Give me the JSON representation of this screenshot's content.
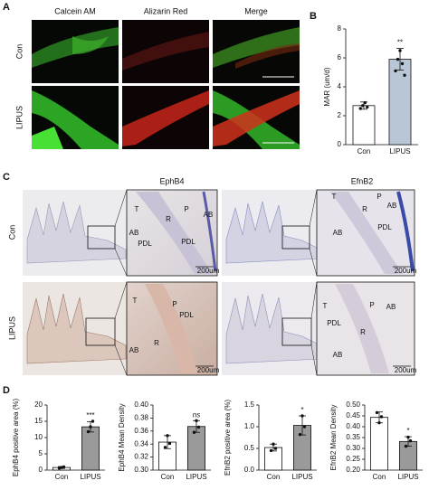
{
  "panel_labels": [
    "A",
    "B",
    "C",
    "D"
  ],
  "panel_a": {
    "columns": [
      "Calcein AM",
      "Alizarin Red",
      "Merge"
    ],
    "rows": [
      "Con",
      "LIPUS"
    ]
  },
  "panel_c": {
    "columns": [
      "EphB4",
      "EfnB2"
    ],
    "rows": [
      "Con",
      "LIPUS"
    ],
    "scale_bar": "200um",
    "annotations": [
      [
        {
          "text": "T",
          "color": "#e0302a"
        },
        {
          "text": "P",
          "color": "#e0302a"
        },
        {
          "text": "R",
          "color": "#111111"
        },
        {
          "text": "AB",
          "color": "#111111"
        },
        {
          "text": "AB",
          "color": "#111111"
        },
        {
          "text": "PDL",
          "color": "#111111"
        },
        {
          "text": "PDL",
          "color": "#111111"
        }
      ],
      [
        {
          "text": "T",
          "color": "#e0302a"
        },
        {
          "text": "P",
          "color": "#e0302a"
        },
        {
          "text": "R",
          "color": "#111111"
        },
        {
          "text": "AB",
          "color": "#111111"
        },
        {
          "text": "AB",
          "color": "#111111"
        },
        {
          "text": "PDL",
          "color": "#111111"
        }
      ],
      [
        {
          "text": "T",
          "color": "#e0302a"
        },
        {
          "text": "P",
          "color": "#e0302a"
        },
        {
          "text": "PDL",
          "color": "#111111"
        },
        {
          "text": "R",
          "color": "#111111"
        },
        {
          "text": "AB",
          "color": "#111111"
        }
      ],
      [
        {
          "text": "T",
          "color": "#e0302a"
        },
        {
          "text": "P",
          "color": "#e0302a"
        },
        {
          "text": "PDL",
          "color": "#111111"
        },
        {
          "text": "AB",
          "color": "#111111"
        },
        {
          "text": "AB",
          "color": "#111111"
        },
        {
          "text": "R",
          "color": "#111111"
        }
      ]
    ]
  },
  "chart_data": [
    {
      "type": "bar",
      "ylabel": "MAR (um/d)",
      "categories": [
        "Con",
        "LIPUS"
      ],
      "values": [
        2.7,
        5.9
      ],
      "errors": [
        0.25,
        0.75
      ],
      "points": [
        [
          2.5,
          2.7,
          2.9,
          2.6
        ],
        [
          5.1,
          5.9,
          6.5,
          5.6,
          4.8
        ]
      ],
      "colors": [
        "#ffffff",
        "#b9c6d6"
      ],
      "significance": [
        null,
        "**"
      ],
      "ylim": [
        0,
        8
      ],
      "yticks": [
        0,
        2,
        4,
        6,
        8
      ]
    },
    {
      "type": "bar",
      "ylabel": "EphB4 positive area (%)",
      "categories": [
        "Con",
        "LIPUS"
      ],
      "values": [
        0.8,
        13.3
      ],
      "errors": [
        0.3,
        1.6
      ],
      "points": [
        [
          0.6,
          0.8,
          1.0
        ],
        [
          11.8,
          13.3,
          15.0
        ]
      ],
      "colors": [
        "#ffffff",
        "#9a9a9a"
      ],
      "significance": [
        null,
        "***"
      ],
      "ylim": [
        0,
        20
      ],
      "yticks": [
        0,
        5,
        10,
        15,
        20
      ]
    },
    {
      "type": "bar",
      "ylabel": "EphB4 Mean Density",
      "categories": [
        "Con",
        "LIPUS"
      ],
      "values": [
        0.343,
        0.367
      ],
      "errors": [
        0.01,
        0.009
      ],
      "points": [
        [
          0.335,
          0.353,
          0.341
        ],
        [
          0.358,
          0.376,
          0.366
        ]
      ],
      "colors": [
        "#ffffff",
        "#9a9a9a"
      ],
      "significance": [
        null,
        "ns"
      ],
      "ylim": [
        0.3,
        0.4
      ],
      "yticks": [
        {
          "value": 0.3,
          "label": "0.30"
        },
        0.32,
        0.34,
        0.36,
        0.38,
        {
          "value": 0.4,
          "label": "0.40"
        }
      ]
    },
    {
      "type": "bar",
      "ylabel": "EfnB2 positive area (%)",
      "categories": [
        "Con",
        "LIPUS"
      ],
      "values": [
        0.52,
        1.03
      ],
      "errors": [
        0.08,
        0.22
      ],
      "points": [
        [
          0.45,
          0.6,
          0.5
        ],
        [
          0.82,
          1.25,
          1.0
        ]
      ],
      "colors": [
        "#ffffff",
        "#9a9a9a"
      ],
      "significance": [
        null,
        "*"
      ],
      "ylim": [
        0,
        1.5
      ],
      "yticks": [
        {
          "value": 0,
          "label": "0.0"
        },
        0.5,
        {
          "value": 1,
          "label": "1.0"
        },
        1.5
      ]
    },
    {
      "type": "bar",
      "ylabel": "EfnB2 Mean Density",
      "categories": [
        "Con",
        "LIPUS"
      ],
      "values": [
        0.443,
        0.332
      ],
      "errors": [
        0.025,
        0.022
      ],
      "points": [
        [
          0.465,
          0.418,
          0.446
        ],
        [
          0.31,
          0.352,
          0.335
        ]
      ],
      "colors": [
        "#ffffff",
        "#9a9a9a"
      ],
      "significance": [
        null,
        "*"
      ],
      "ylim": [
        0.2,
        0.5
      ],
      "yticks": [
        {
          "value": 0.2,
          "label": "0.20"
        },
        0.25,
        {
          "value": 0.3,
          "label": "0.30"
        },
        0.35,
        {
          "value": 0.4,
          "label": "0.40"
        },
        0.45,
        {
          "value": 0.5,
          "label": "0.50"
        }
      ]
    }
  ]
}
